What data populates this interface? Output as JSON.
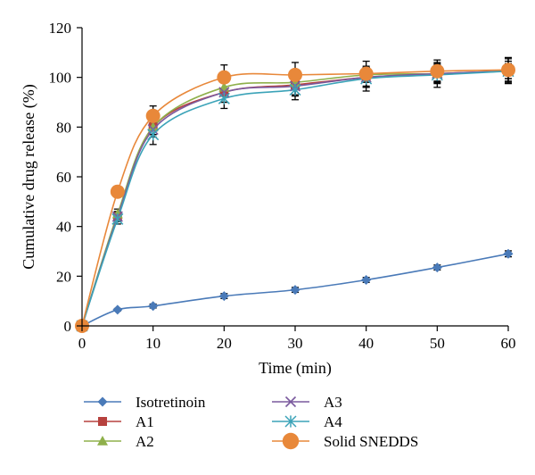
{
  "chart_data": {
    "type": "line",
    "xlabel": "Time (min)",
    "ylabel": "Cumulative drug release (%)",
    "xlim": [
      0,
      60
    ],
    "ylim": [
      0,
      120
    ],
    "xticks": [
      0,
      10,
      20,
      30,
      40,
      50,
      60
    ],
    "yticks": [
      0,
      20,
      40,
      60,
      80,
      100,
      120
    ],
    "grid": false,
    "legend_position": "bottom",
    "x": [
      0,
      5,
      10,
      20,
      30,
      40,
      50,
      60
    ],
    "series": [
      {
        "name": "Isotretinoin",
        "marker": "diamond",
        "color": "#4a7ab8",
        "values": [
          0,
          6.5,
          8,
          12,
          14.5,
          18.5,
          23.5,
          29
        ],
        "errors": [
          0,
          0.5,
          0.8,
          1,
          1,
          1,
          1,
          1.2
        ]
      },
      {
        "name": "A1",
        "marker": "square",
        "color": "#b7413e",
        "values": [
          0,
          44,
          80,
          94,
          97,
          100,
          101.5,
          102.5
        ],
        "errors": [
          0,
          2,
          3,
          4,
          4,
          4,
          3.5,
          3
        ]
      },
      {
        "name": "A2",
        "marker": "triangle",
        "color": "#8fb04b",
        "values": [
          0,
          45,
          80,
          96,
          98,
          101,
          101.5,
          102.5
        ],
        "errors": [
          0,
          2,
          3,
          3,
          3,
          3,
          3,
          3
        ]
      },
      {
        "name": "A3",
        "marker": "x",
        "color": "#7a5a9e",
        "values": [
          0,
          44,
          79,
          94,
          96.5,
          100,
          101.5,
          102.5
        ],
        "errors": [
          0,
          2,
          3,
          4,
          4,
          4,
          4,
          4
        ]
      },
      {
        "name": "A4",
        "marker": "star",
        "color": "#3ba3b8",
        "values": [
          0,
          43,
          77,
          91.5,
          95,
          99.5,
          101,
          102.5
        ],
        "errors": [
          0,
          2,
          4,
          4,
          4,
          5,
          5,
          5
        ]
      },
      {
        "name": "Solid SNEDDS",
        "marker": "circle",
        "color": "#e8883a",
        "values": [
          0,
          54,
          84.5,
          100,
          101,
          101.5,
          102.5,
          103
        ],
        "errors": [
          0,
          2,
          4,
          5,
          5,
          5,
          4.5,
          5
        ]
      }
    ]
  }
}
